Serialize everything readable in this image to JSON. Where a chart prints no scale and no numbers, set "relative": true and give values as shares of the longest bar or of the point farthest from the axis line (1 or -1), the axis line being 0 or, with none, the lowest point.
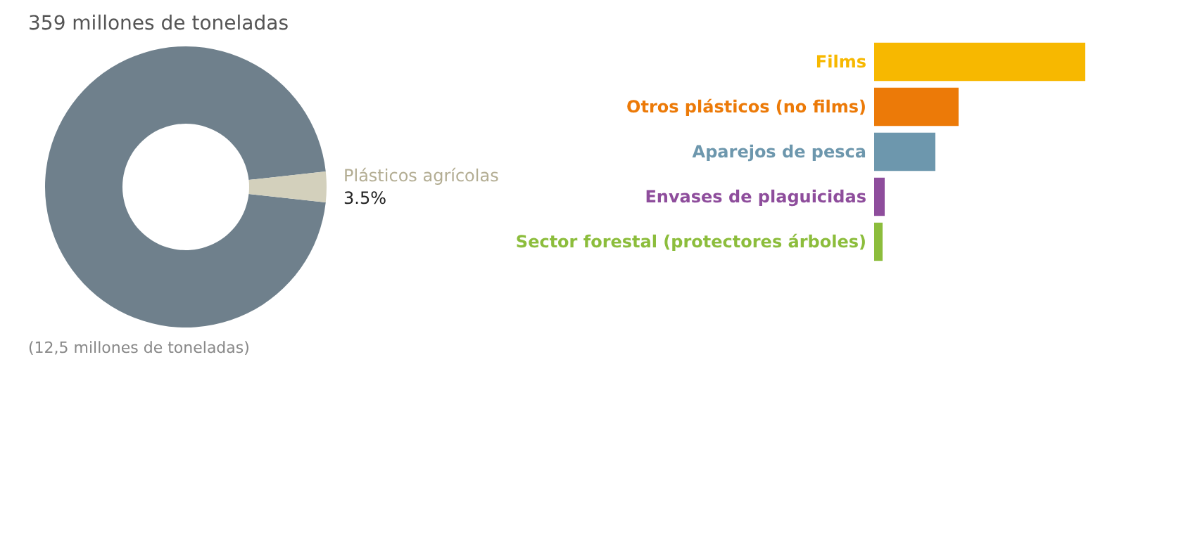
{
  "chart_data": [
    {
      "type": "donut",
      "title": "359 millones de toneladas",
      "categories": [
        null,
        "Plásticos agrícolas"
      ],
      "values": [
        96.5,
        3.5
      ],
      "colors": [
        "#6f808c",
        "#d3d0bc"
      ],
      "value_labels": [
        null,
        "3.5%"
      ],
      "annotations": [
        "(12,5 millones de toneladas)"
      ],
      "legend": false
    },
    {
      "type": "bar",
      "orientation": "horizontal",
      "relative": true,
      "categories": [
        "Films",
        "Otros plásticos (no films)",
        "Aparejos de pesca",
        "Envases de plaguicidas",
        "Sector forestal (protectores árboles)"
      ],
      "values": [
        1,
        0.4,
        0.29,
        0.05,
        0.04
      ],
      "colors": [
        "#f7b800",
        "#ec7a08",
        "#6d97ad",
        "#8e4d9c",
        "#8cbd3c"
      ],
      "legend": false
    }
  ]
}
